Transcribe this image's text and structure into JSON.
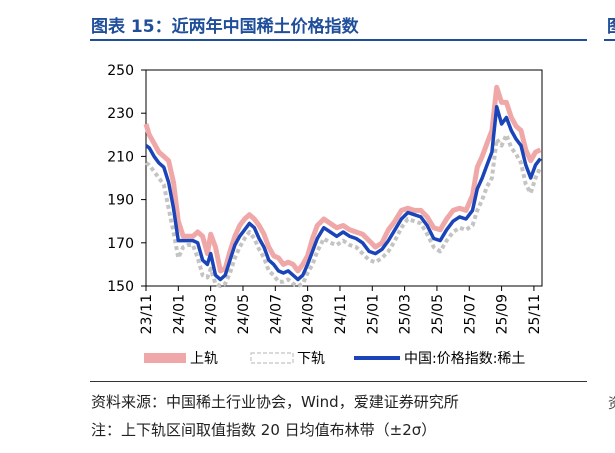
{
  "header": {
    "title": "图表 15：近两年中国稀土价格指数",
    "edge_glyph": "图",
    "edge_glyph2": "资"
  },
  "footer": {
    "source": "资料来源：中国稀土行业协会，Wind，爱建证券研究所",
    "note": "注：上下轨区间取值指数 20 日均值布林带（±2σ）"
  },
  "colors": {
    "index_line": "#1a44b8",
    "upper_band": "#f0a7a7",
    "lower_band": "#c4c4c4",
    "title": "#1f4e9a"
  },
  "chart_data": {
    "type": "line",
    "x_ticks": [
      "23/11",
      "24/01",
      "24/03",
      "24/05",
      "24/07",
      "24/09",
      "24/11",
      "25/01",
      "25/03",
      "25/05",
      "25/07",
      "25/09",
      "25/11"
    ],
    "ylim": [
      150,
      250
    ],
    "y_ticks": [
      150,
      170,
      190,
      210,
      230,
      250
    ],
    "xlim": [
      0,
      24.5
    ],
    "grid": false,
    "legend_position": "bottom",
    "series": [
      {
        "name": "中国:价格指数:稀土",
        "style": "line",
        "x": [
          0,
          0.2,
          0.5,
          0.8,
          1.1,
          1.4,
          1.7,
          2.0,
          2.3,
          2.6,
          2.9,
          3.2,
          3.5,
          3.8,
          4.0,
          4.3,
          4.6,
          4.9,
          5.2,
          5.5,
          5.8,
          6.1,
          6.4,
          6.7,
          7.0,
          7.3,
          7.6,
          7.9,
          8.2,
          8.5,
          8.8,
          9.1,
          9.4,
          9.7,
          10.0,
          10.3,
          10.6,
          11.0,
          11.4,
          11.8,
          12.2,
          12.6,
          13.0,
          13.4,
          13.8,
          14.2,
          14.6,
          15.0,
          15.4,
          15.8,
          16.2,
          16.6,
          17.0,
          17.4,
          17.8,
          18.2,
          18.6,
          19.0,
          19.4,
          19.8,
          20.2,
          20.5,
          20.8,
          21.1,
          21.4,
          21.7,
          22.0,
          22.3,
          22.6,
          22.9,
          23.2,
          23.5,
          23.8,
          24.1,
          24.4
        ],
        "y": [
          215,
          214,
          210,
          207,
          205,
          198,
          186,
          171,
          171,
          171,
          171,
          170,
          162,
          160,
          165,
          155,
          153,
          155,
          162,
          169,
          173,
          176,
          179,
          177,
          172,
          168,
          162,
          160,
          157,
          156,
          157,
          155,
          153,
          155,
          160,
          166,
          172,
          177,
          175,
          173,
          175,
          173,
          172,
          170,
          166,
          165,
          167,
          171,
          176,
          181,
          184,
          183,
          182,
          178,
          172,
          171,
          176,
          180,
          182,
          181,
          185,
          195,
          200,
          206,
          212,
          233,
          225,
          228,
          222,
          218,
          215,
          206,
          200,
          206,
          209
        ]
      },
      {
        "name": "上轨",
        "style": "band",
        "x": [
          0,
          0.2,
          0.5,
          0.8,
          1.1,
          1.4,
          1.7,
          2.0,
          2.3,
          2.6,
          2.9,
          3.2,
          3.5,
          3.8,
          4.0,
          4.3,
          4.6,
          4.9,
          5.2,
          5.5,
          5.8,
          6.1,
          6.4,
          6.7,
          7.0,
          7.3,
          7.6,
          7.9,
          8.2,
          8.5,
          8.8,
          9.1,
          9.4,
          9.7,
          10.0,
          10.3,
          10.6,
          11.0,
          11.4,
          11.8,
          12.2,
          12.6,
          13.0,
          13.4,
          13.8,
          14.2,
          14.6,
          15.0,
          15.4,
          15.8,
          16.2,
          16.6,
          17.0,
          17.4,
          17.8,
          18.2,
          18.6,
          19.0,
          19.4,
          19.8,
          20.2,
          20.5,
          20.8,
          21.1,
          21.4,
          21.7,
          22.0,
          22.3,
          22.6,
          22.9,
          23.2,
          23.5,
          23.8,
          24.1,
          24.4
        ],
        "y": [
          225,
          220,
          216,
          212,
          210,
          208,
          198,
          180,
          173,
          173,
          173,
          175,
          173,
          165,
          174,
          168,
          157,
          158,
          166,
          173,
          178,
          181,
          183,
          181,
          178,
          174,
          168,
          164,
          163,
          160,
          161,
          160,
          157,
          160,
          164,
          172,
          178,
          181,
          179,
          177,
          178,
          176,
          175,
          174,
          171,
          168,
          170,
          176,
          180,
          185,
          186,
          185,
          185,
          182,
          177,
          176,
          181,
          185,
          186,
          185,
          192,
          205,
          210,
          216,
          222,
          242,
          235,
          235,
          228,
          224,
          222,
          213,
          208,
          212,
          213
        ]
      },
      {
        "name": "下轨",
        "style": "band",
        "x": [
          0,
          0.2,
          0.5,
          0.8,
          1.1,
          1.4,
          1.7,
          2.0,
          2.3,
          2.6,
          2.9,
          3.2,
          3.5,
          3.8,
          4.0,
          4.3,
          4.6,
          4.9,
          5.2,
          5.5,
          5.8,
          6.1,
          6.4,
          6.7,
          7.0,
          7.3,
          7.6,
          7.9,
          8.2,
          8.5,
          8.8,
          9.1,
          9.4,
          9.7,
          10.0,
          10.3,
          10.6,
          11.0,
          11.4,
          11.8,
          12.2,
          12.6,
          13.0,
          13.4,
          13.8,
          14.2,
          14.6,
          15.0,
          15.4,
          15.8,
          16.2,
          16.6,
          17.0,
          17.4,
          17.8,
          18.2,
          18.6,
          19.0,
          19.4,
          19.8,
          20.2,
          20.5,
          20.8,
          21.1,
          21.4,
          21.7,
          22.0,
          22.3,
          22.6,
          22.9,
          23.2,
          23.5,
          23.8,
          24.1,
          24.4
        ],
        "y": [
          207,
          206,
          203,
          200,
          197,
          186,
          175,
          163,
          168,
          169,
          169,
          163,
          155,
          154,
          158,
          151,
          150,
          151,
          156,
          163,
          168,
          172,
          175,
          172,
          167,
          163,
          157,
          155,
          152,
          152,
          153,
          151,
          150,
          151,
          156,
          160,
          166,
          172,
          170,
          169,
          171,
          169,
          168,
          165,
          162,
          161,
          163,
          166,
          171,
          177,
          181,
          180,
          179,
          174,
          168,
          166,
          171,
          175,
          177,
          176,
          178,
          185,
          190,
          196,
          200,
          218,
          215,
          220,
          214,
          211,
          207,
          197,
          193,
          200,
          205
        ]
      }
    ]
  }
}
